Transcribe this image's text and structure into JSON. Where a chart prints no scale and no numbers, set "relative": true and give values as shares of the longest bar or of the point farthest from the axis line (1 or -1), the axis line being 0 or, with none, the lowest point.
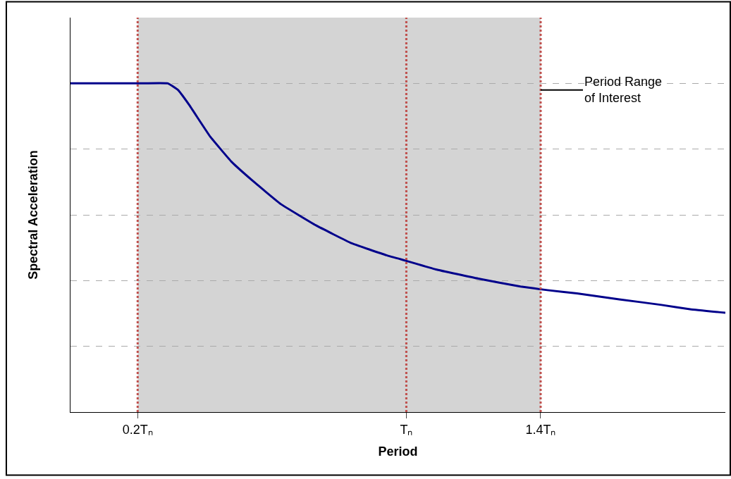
{
  "chart_data": {
    "type": "line",
    "relative": true,
    "xlabel": "Period",
    "ylabel": "Spectral Acceleration",
    "x": [
      0,
      0.2,
      0.29,
      0.32,
      0.353,
      0.416,
      0.479,
      0.542,
      0.626,
      0.731,
      0.836,
      0.941,
      1.0,
      1.088,
      1.214,
      1.34,
      1.42,
      1.508,
      1.634,
      1.76,
      1.845,
      1.95
    ],
    "series": [
      {
        "color": "#00008b",
        "values": [
          1.0,
          1.0,
          1.0,
          0.98,
          0.935,
          0.838,
          0.762,
          0.704,
          0.633,
          0.568,
          0.514,
          0.477,
          0.46,
          0.434,
          0.406,
          0.382,
          0.371,
          0.361,
          0.343,
          0.326,
          0.313,
          0.302
        ]
      }
    ],
    "xlim": [
      0,
      1.95
    ],
    "xticks": [
      {
        "value": 0.2,
        "label": "0.2Tₙ"
      },
      {
        "value": 1,
        "label": "Tₙ"
      },
      {
        "value": 1.4,
        "label": "1.4Tₙ"
      }
    ],
    "ref_lines": [
      {
        "axis": "x",
        "value": 0.2,
        "color": "#c0504d",
        "line_style": "dotted"
      },
      {
        "axis": "x",
        "value": 1,
        "color": "#c0504d",
        "line_style": "dotted"
      },
      {
        "axis": "x",
        "value": 1.4,
        "color": "#c0504d",
        "line_style": "dotted"
      }
    ],
    "bands": [
      {
        "axis": "x",
        "from": 0.2,
        "to": 1.4,
        "label": "Period Range\nof Interest",
        "color": "#a0a0a0"
      }
    ],
    "grid": "y",
    "marker": "none",
    "line_style": "solid"
  }
}
